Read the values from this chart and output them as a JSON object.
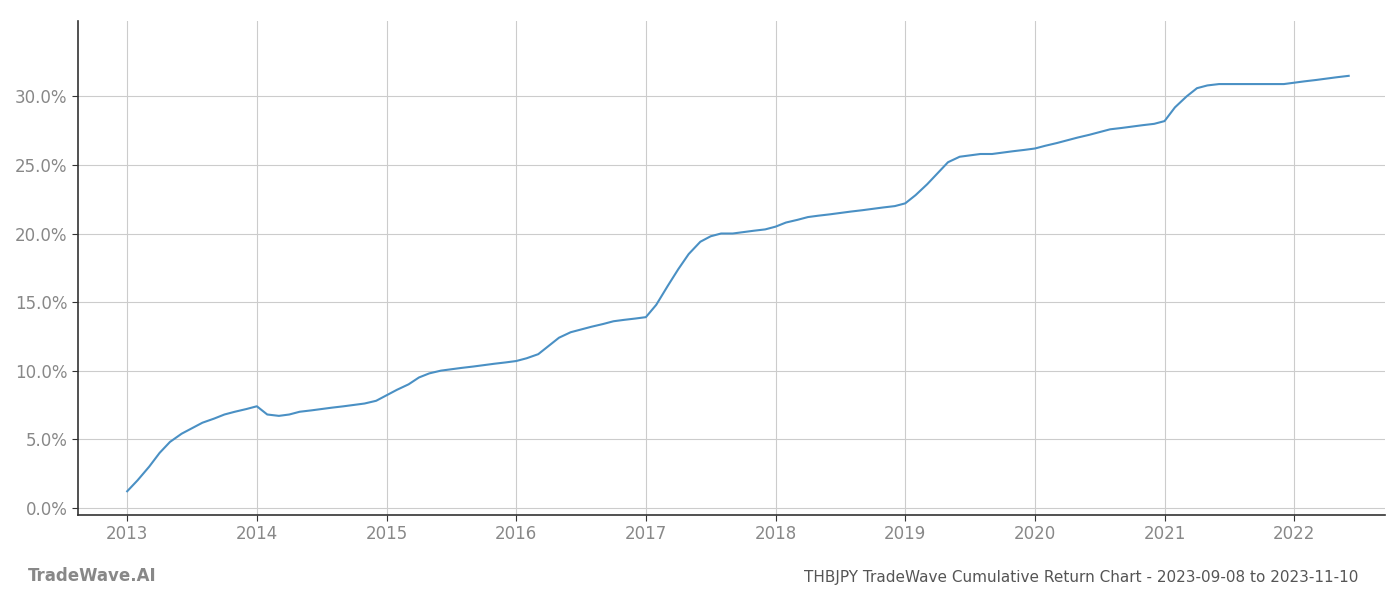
{
  "title": "THBJPY TradeWave Cumulative Return Chart - 2023-09-08 to 2023-11-10",
  "watermark": "TradeWave.AI",
  "line_color": "#4a90c4",
  "background_color": "#ffffff",
  "grid_color": "#cccccc",
  "x_years": [
    2013,
    2014,
    2015,
    2016,
    2017,
    2018,
    2019,
    2020,
    2021,
    2022
  ],
  "x_values": [
    2013.0,
    2013.08,
    2013.17,
    2013.25,
    2013.33,
    2013.42,
    2013.5,
    2013.58,
    2013.67,
    2013.75,
    2013.83,
    2013.92,
    2014.0,
    2014.08,
    2014.17,
    2014.25,
    2014.33,
    2014.42,
    2014.5,
    2014.58,
    2014.67,
    2014.75,
    2014.83,
    2014.92,
    2015.0,
    2015.08,
    2015.17,
    2015.25,
    2015.33,
    2015.42,
    2015.5,
    2015.58,
    2015.67,
    2015.75,
    2015.83,
    2015.92,
    2016.0,
    2016.08,
    2016.17,
    2016.25,
    2016.33,
    2016.42,
    2016.5,
    2016.58,
    2016.67,
    2016.75,
    2016.83,
    2016.92,
    2017.0,
    2017.08,
    2017.17,
    2017.25,
    2017.33,
    2017.42,
    2017.5,
    2017.58,
    2017.67,
    2017.75,
    2017.83,
    2017.92,
    2018.0,
    2018.08,
    2018.17,
    2018.25,
    2018.33,
    2018.42,
    2018.5,
    2018.58,
    2018.67,
    2018.75,
    2018.83,
    2018.92,
    2019.0,
    2019.08,
    2019.17,
    2019.25,
    2019.33,
    2019.42,
    2019.5,
    2019.58,
    2019.67,
    2019.75,
    2019.83,
    2019.92,
    2020.0,
    2020.08,
    2020.17,
    2020.25,
    2020.33,
    2020.42,
    2020.5,
    2020.58,
    2020.67,
    2020.75,
    2020.83,
    2020.92,
    2021.0,
    2021.08,
    2021.17,
    2021.25,
    2021.33,
    2021.42,
    2021.5,
    2021.58,
    2021.67,
    2021.75,
    2021.83,
    2021.92,
    2022.0,
    2022.08,
    2022.17,
    2022.25,
    2022.33,
    2022.42
  ],
  "y_values": [
    0.012,
    0.02,
    0.03,
    0.04,
    0.048,
    0.054,
    0.058,
    0.062,
    0.065,
    0.068,
    0.07,
    0.072,
    0.074,
    0.068,
    0.067,
    0.068,
    0.07,
    0.071,
    0.072,
    0.073,
    0.074,
    0.075,
    0.076,
    0.078,
    0.082,
    0.086,
    0.09,
    0.095,
    0.098,
    0.1,
    0.101,
    0.102,
    0.103,
    0.104,
    0.105,
    0.106,
    0.107,
    0.109,
    0.112,
    0.118,
    0.124,
    0.128,
    0.13,
    0.132,
    0.134,
    0.136,
    0.137,
    0.138,
    0.139,
    0.148,
    0.162,
    0.174,
    0.185,
    0.194,
    0.198,
    0.2,
    0.2,
    0.201,
    0.202,
    0.203,
    0.205,
    0.208,
    0.21,
    0.212,
    0.213,
    0.214,
    0.215,
    0.216,
    0.217,
    0.218,
    0.219,
    0.22,
    0.222,
    0.228,
    0.236,
    0.244,
    0.252,
    0.256,
    0.257,
    0.258,
    0.258,
    0.259,
    0.26,
    0.261,
    0.262,
    0.264,
    0.266,
    0.268,
    0.27,
    0.272,
    0.274,
    0.276,
    0.277,
    0.278,
    0.279,
    0.28,
    0.282,
    0.292,
    0.3,
    0.306,
    0.308,
    0.309,
    0.309,
    0.309,
    0.309,
    0.309,
    0.309,
    0.309,
    0.31,
    0.311,
    0.312,
    0.313,
    0.314,
    0.315
  ],
  "yticks": [
    0.0,
    0.05,
    0.1,
    0.15,
    0.2,
    0.25,
    0.3
  ],
  "ytick_labels": [
    "0.0%",
    "5.0%",
    "10.0%",
    "15.0%",
    "20.0%",
    "25.0%",
    "30.0%"
  ],
  "ylim": [
    -0.005,
    0.355
  ],
  "xlim": [
    2012.62,
    2022.7
  ],
  "title_fontsize": 11,
  "watermark_fontsize": 12,
  "axis_label_color": "#888888",
  "title_color": "#555555",
  "line_width": 1.5,
  "spine_color": "#333333"
}
